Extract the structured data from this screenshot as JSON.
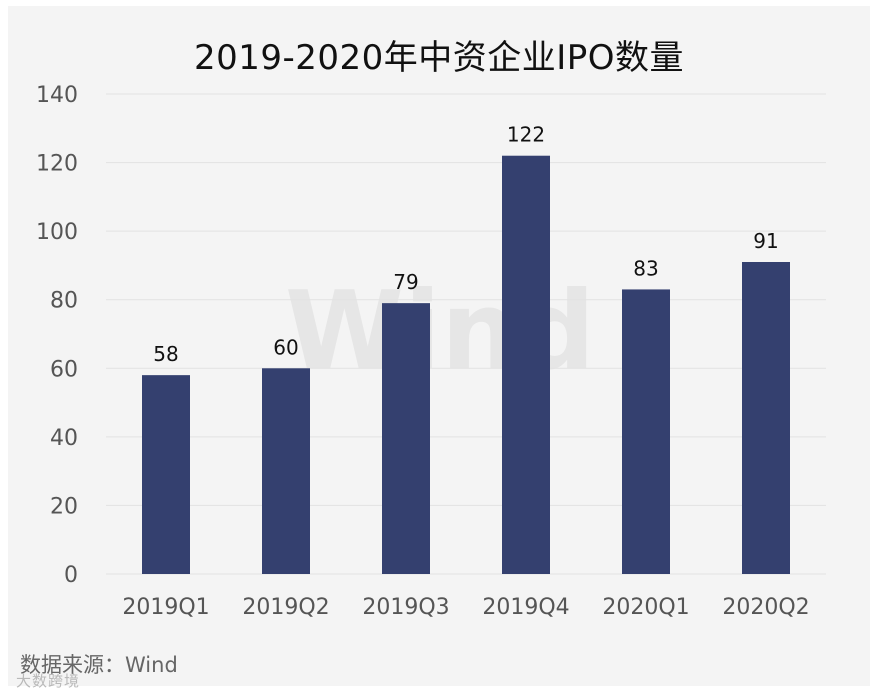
{
  "chart_data": {
    "type": "bar",
    "title": "2019-2020年中资企业IPO数量",
    "categories": [
      "2019Q1",
      "2019Q2",
      "2019Q3",
      "2019Q4",
      "2020Q1",
      "2020Q2"
    ],
    "values": [
      58,
      60,
      79,
      122,
      83,
      91
    ],
    "data_labels": [
      "58",
      "60",
      "79",
      "122",
      "83",
      "91"
    ],
    "ylim": [
      0,
      140
    ],
    "yticks": [
      0,
      20,
      40,
      60,
      80,
      100,
      120,
      140
    ],
    "grid": true,
    "bar_color": "#34406f",
    "background_watermark": "Wind"
  },
  "source": "数据来源：Wind",
  "corner_watermark": "大数跨境",
  "colors": {
    "bar": "#34406f",
    "grid": "#e2e2e2",
    "axis_text": "#555555",
    "card_background": "#f4f4f4"
  }
}
